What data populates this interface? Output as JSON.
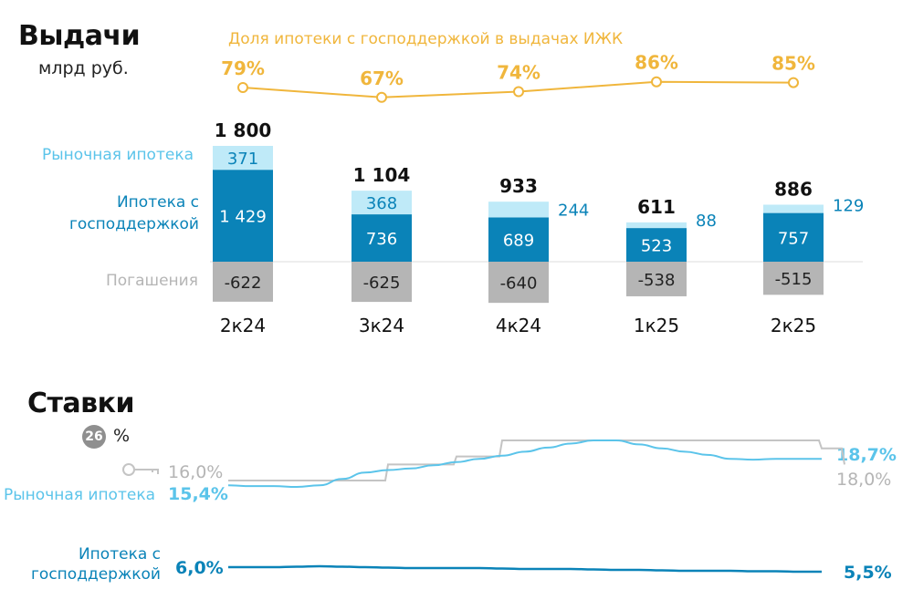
{
  "chart_data": [
    {
      "type": "bar",
      "title": "Выдачи",
      "unit": "млрд руб.",
      "categories": [
        "2к24",
        "3к24",
        "4к24",
        "1к25",
        "2к25"
      ],
      "series": [
        {
          "name": "Ипотека с господдержкой",
          "values": [
            1429,
            736,
            689,
            523,
            757
          ],
          "labels": [
            "1 429",
            "736",
            "689",
            "523",
            "757"
          ],
          "color": "#0a83b8"
        },
        {
          "name": "Рыночная ипотека",
          "values": [
            371,
            368,
            244,
            88,
            129
          ],
          "labels": [
            "371",
            "368",
            "244",
            "88",
            "129"
          ],
          "color": "#bfeaf8"
        },
        {
          "name": "Погашения",
          "values": [
            -622,
            -625,
            -640,
            -538,
            -515
          ],
          "labels": [
            "-622",
            "-625",
            "-640",
            "-538",
            "-515"
          ],
          "color": "#b5b5b5"
        }
      ],
      "totals": [
        "1 800",
        "1 104",
        "933",
        "611",
        "886"
      ],
      "share_line": {
        "name": "Доля ипотеки с господдержкой в выдачах ИЖК",
        "values": [
          79,
          67,
          74,
          86,
          85
        ],
        "labels": [
          "79%",
          "67%",
          "74%",
          "86%",
          "85%"
        ],
        "color": "#f0b63c"
      }
    },
    {
      "type": "line",
      "title": "Ставки",
      "unit": "%",
      "badge": "26",
      "series": [
        {
          "name": "Ключевая ставка",
          "icon": "key-icon",
          "color": "#c4c4c4",
          "start_label": "16,0%",
          "end_label": "18,0%",
          "values": [
            16,
            16,
            16,
            16,
            16,
            16,
            16,
            18,
            18,
            18,
            19,
            19,
            21,
            21,
            21,
            21,
            21,
            21,
            21,
            21,
            21,
            21,
            21,
            21,
            21,
            21,
            20,
            18
          ]
        },
        {
          "name": "Рыночная ипотека",
          "color": "#5bc4ea",
          "start_label": "15,4%",
          "end_label": "18,7%",
          "values": [
            15.4,
            15.3,
            15.3,
            15.2,
            15.4,
            16.2,
            17.0,
            17.3,
            17.5,
            17.9,
            18.3,
            18.7,
            19.1,
            19.6,
            20.1,
            20.6,
            21.0,
            21.0,
            20.5,
            20.0,
            19.6,
            19.2,
            18.7,
            18.6,
            18.7,
            18.7,
            18.7
          ]
        },
        {
          "name": "Ипотека с господдержкой",
          "color": "#0a83b8",
          "start_label": "6,0%",
          "end_label": "5,5%",
          "values": [
            6.0,
            6.0,
            6.0,
            6.05,
            6.1,
            6.05,
            6.0,
            5.95,
            5.9,
            5.9,
            5.9,
            5.9,
            5.85,
            5.8,
            5.8,
            5.8,
            5.75,
            5.7,
            5.7,
            5.65,
            5.6,
            5.6,
            5.6,
            5.55,
            5.55,
            5.5,
            5.5
          ]
        }
      ]
    }
  ]
}
